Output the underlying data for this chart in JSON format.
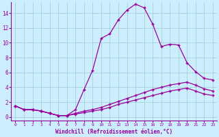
{
  "xlabel": "Windchill (Refroidissement éolien,°C)",
  "ylabel": "",
  "bg_color": "#cceeff",
  "line_color": "#990099",
  "grid_color": "#99cccc",
  "xlim": [
    -0.5,
    23.5
  ],
  "ylim": [
    -0.5,
    15.5
  ],
  "xticks": [
    0,
    1,
    2,
    3,
    4,
    5,
    6,
    7,
    8,
    9,
    10,
    11,
    12,
    13,
    14,
    15,
    16,
    17,
    18,
    19,
    20,
    21,
    22,
    23
  ],
  "yticks": [
    0,
    2,
    4,
    6,
    8,
    10,
    12,
    14
  ],
  "line1_x": [
    0,
    1,
    2,
    3,
    4,
    5,
    6,
    7,
    8,
    9,
    10,
    11,
    12,
    13,
    14,
    15,
    16,
    17,
    18,
    19,
    20,
    21,
    22,
    23
  ],
  "line1_y": [
    1.5,
    1.0,
    1.0,
    0.8,
    0.5,
    0.2,
    0.2,
    1.0,
    3.7,
    6.3,
    10.6,
    11.2,
    13.1,
    14.4,
    15.2,
    14.7,
    12.5,
    9.5,
    9.8,
    9.7,
    7.3,
    6.1,
    5.2,
    5.0
  ],
  "line2_x": [
    0,
    1,
    2,
    3,
    4,
    5,
    6,
    7,
    8,
    9,
    10,
    11,
    12,
    13,
    14,
    15,
    16,
    17,
    18,
    19,
    20,
    21,
    22,
    23
  ],
  "line2_y": [
    1.5,
    1.0,
    1.0,
    0.8,
    0.5,
    0.2,
    0.2,
    0.5,
    0.8,
    1.0,
    1.3,
    1.7,
    2.1,
    2.5,
    2.9,
    3.3,
    3.7,
    4.0,
    4.3,
    4.5,
    4.7,
    4.3,
    3.8,
    3.5
  ],
  "line3_x": [
    0,
    1,
    2,
    3,
    4,
    5,
    6,
    7,
    8,
    9,
    10,
    11,
    12,
    13,
    14,
    15,
    16,
    17,
    18,
    19,
    20,
    21,
    22,
    23
  ],
  "line3_y": [
    1.5,
    1.0,
    1.0,
    0.8,
    0.5,
    0.2,
    0.2,
    0.4,
    0.6,
    0.8,
    1.0,
    1.3,
    1.7,
    2.0,
    2.3,
    2.6,
    2.9,
    3.2,
    3.5,
    3.7,
    3.9,
    3.5,
    3.1,
    2.9
  ]
}
